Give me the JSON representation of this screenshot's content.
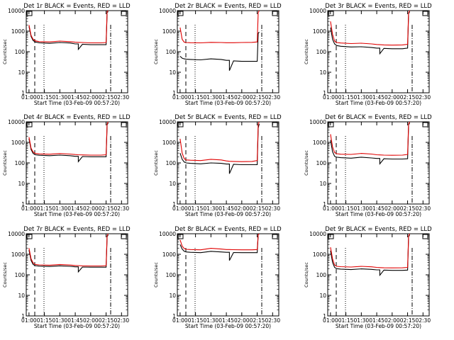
{
  "colors": {
    "events": "#000000",
    "lld": "#e00000",
    "axis": "#000000",
    "background": "#ffffff"
  },
  "chart_data": [
    {
      "type": "line",
      "title": "Det 1r BLACK = Events, RED = LLD",
      "xlabel": "Start Time (03-Feb-09 00:57:20)",
      "ylabel": "Counts/sec",
      "yscale": "log",
      "ylim": [
        1,
        10000
      ],
      "xlim": [
        "00:57:20",
        "02:36:00"
      ],
      "x_ticks": [
        "01:00",
        "01:15",
        "01:30",
        "01:45",
        "02:00",
        "02:15",
        "02:30"
      ],
      "y_ticks": [
        "1",
        "10",
        "100",
        "1000",
        "10000"
      ],
      "x": [
        "01:00",
        "01:02",
        "01:04",
        "01:06",
        "01:10",
        "01:20",
        "01:30",
        "01:40",
        "01:45",
        "01:48",
        "01:48",
        "01:52",
        "02:00",
        "02:10",
        "02:15",
        "02:16",
        "02:17"
      ],
      "series": [
        {
          "name": "Events",
          "values": [
            1700,
            550,
            350,
            300,
            270,
            255,
            280,
            265,
            240,
            240,
            130,
            230,
            220,
            220,
            220,
            8000,
            9000
          ]
        },
        {
          "name": "LLD",
          "values": [
            2000,
            620,
            400,
            340,
            310,
            300,
            330,
            310,
            290,
            285,
            285,
            280,
            270,
            270,
            280,
            9000,
            10000
          ]
        }
      ],
      "grid": false
    },
    {
      "type": "line",
      "title": "Det 2r BLACK = Events, RED = LLD",
      "xlabel": "Start Time (03-Feb-09 00:57:20)",
      "ylabel": "Counts/sec",
      "yscale": "log",
      "ylim": [
        1,
        10000
      ],
      "xlim": [
        "00:57:20",
        "02:36:00"
      ],
      "x_ticks": [
        "01:00",
        "01:15",
        "01:30",
        "01:45",
        "02:00",
        "02:15",
        "02:30"
      ],
      "y_ticks": [
        "1",
        "10",
        "100",
        "1000",
        "10000"
      ],
      "x": [
        "01:00",
        "01:02",
        "01:04",
        "01:06",
        "01:10",
        "01:20",
        "01:30",
        "01:40",
        "01:45",
        "01:48",
        "01:48",
        "01:52",
        "02:00",
        "02:10",
        "02:15",
        "02:16",
        "02:17"
      ],
      "series": [
        {
          "name": "Events",
          "values": [
            60,
            48,
            45,
            43,
            42,
            40,
            45,
            42,
            38,
            38,
            12,
            36,
            34,
            34,
            34,
            800,
            900
          ]
        },
        {
          "name": "LLD",
          "values": [
            1500,
            400,
            290,
            280,
            275,
            270,
            285,
            280,
            275,
            275,
            275,
            275,
            280,
            285,
            300,
            8000,
            10000
          ]
        }
      ],
      "grid": false
    },
    {
      "type": "line",
      "title": "Det 3r BLACK = Events, RED = LLD",
      "xlabel": "Start Time (03-Feb-09 00:57:20)",
      "ylabel": "Counts/sec",
      "yscale": "log",
      "ylim": [
        1,
        10000
      ],
      "xlim": [
        "00:57:20",
        "02:36:00"
      ],
      "x_ticks": [
        "01:00",
        "01:15",
        "01:30",
        "01:45",
        "02:00",
        "02:15",
        "02:30"
      ],
      "y_ticks": [
        "1",
        "10",
        "100",
        "1000",
        "10000"
      ],
      "x": [
        "01:00",
        "01:02",
        "01:04",
        "01:06",
        "01:10",
        "01:20",
        "01:30",
        "01:40",
        "01:45",
        "01:48",
        "01:48",
        "01:52",
        "02:00",
        "02:10",
        "02:15",
        "02:16",
        "02:17"
      ],
      "series": [
        {
          "name": "Events",
          "values": [
            1500,
            400,
            240,
            200,
            185,
            170,
            175,
            160,
            150,
            150,
            80,
            145,
            140,
            140,
            150,
            7000,
            9000
          ]
        },
        {
          "name": "LLD",
          "values": [
            3000,
            700,
            330,
            280,
            265,
            250,
            260,
            240,
            225,
            220,
            220,
            215,
            210,
            215,
            230,
            8000,
            10000
          ]
        }
      ],
      "grid": false
    },
    {
      "type": "line",
      "title": "Det 4r BLACK = Events, RED = LLD",
      "xlabel": "Start Time (03-Feb-09 00:57:20)",
      "ylabel": "Counts/sec",
      "yscale": "log",
      "ylim": [
        1,
        10000
      ],
      "xlim": [
        "00:57:20",
        "02:36:00"
      ],
      "x_ticks": [
        "01:00",
        "01:15",
        "01:30",
        "01:45",
        "02:00",
        "02:15",
        "02:30"
      ],
      "y_ticks": [
        "1",
        "10",
        "100",
        "1000",
        "10000"
      ],
      "x": [
        "01:00",
        "01:02",
        "01:04",
        "01:06",
        "01:10",
        "01:20",
        "01:30",
        "01:40",
        "01:45",
        "01:48",
        "01:48",
        "01:52",
        "02:00",
        "02:10",
        "02:15",
        "02:16",
        "02:17"
      ],
      "series": [
        {
          "name": "Events",
          "values": [
            1500,
            450,
            290,
            250,
            235,
            225,
            240,
            225,
            210,
            210,
            115,
            205,
            200,
            200,
            200,
            7000,
            9000
          ]
        },
        {
          "name": "LLD",
          "values": [
            1800,
            520,
            340,
            290,
            275,
            265,
            285,
            270,
            255,
            250,
            250,
            245,
            240,
            240,
            250,
            8000,
            10000
          ]
        }
      ],
      "grid": false
    },
    {
      "type": "line",
      "title": "Det 5r BLACK = Events, RED = LLD",
      "xlabel": "Start Time (03-Feb-09 00:57:20)",
      "ylabel": "Counts/sec",
      "yscale": "log",
      "ylim": [
        1,
        10000
      ],
      "xlim": [
        "00:57:20",
        "02:36:00"
      ],
      "x_ticks": [
        "01:00",
        "01:15",
        "01:30",
        "01:45",
        "02:00",
        "02:15",
        "02:30"
      ],
      "y_ticks": [
        "1",
        "10",
        "100",
        "1000",
        "10000"
      ],
      "x": [
        "01:00",
        "01:02",
        "01:04",
        "01:06",
        "01:10",
        "01:20",
        "01:30",
        "01:40",
        "01:45",
        "01:48",
        "01:48",
        "01:52",
        "02:00",
        "02:10",
        "02:15",
        "02:16",
        "02:17"
      ],
      "series": [
        {
          "name": "Events",
          "values": [
            300,
            150,
            110,
            100,
            95,
            90,
            100,
            95,
            88,
            88,
            30,
            85,
            82,
            82,
            82,
            5000,
            8000
          ]
        },
        {
          "name": "LLD",
          "values": [
            1500,
            300,
            160,
            140,
            135,
            130,
            150,
            140,
            125,
            120,
            120,
            118,
            115,
            118,
            130,
            8000,
            10000
          ]
        }
      ],
      "grid": false
    },
    {
      "type": "line",
      "title": "Det 6r BLACK = Events, RED = LLD",
      "xlabel": "Start Time (03-Feb-09 00:57:20)",
      "ylabel": "Counts/sec",
      "yscale": "log",
      "ylim": [
        1,
        10000
      ],
      "xlim": [
        "00:57:20",
        "02:36:00"
      ],
      "x_ticks": [
        "01:00",
        "01:15",
        "01:30",
        "01:45",
        "02:00",
        "02:15",
        "02:30"
      ],
      "y_ticks": [
        "1",
        "10",
        "100",
        "1000",
        "10000"
      ],
      "x": [
        "01:00",
        "01:02",
        "01:04",
        "01:06",
        "01:10",
        "01:20",
        "01:30",
        "01:40",
        "01:45",
        "01:48",
        "01:48",
        "01:52",
        "02:00",
        "02:10",
        "02:15",
        "02:16",
        "02:17"
      ],
      "series": [
        {
          "name": "Events",
          "values": [
            1300,
            350,
            210,
            190,
            180,
            170,
            190,
            175,
            165,
            165,
            90,
            160,
            155,
            155,
            160,
            7000,
            9000
          ]
        },
        {
          "name": "LLD",
          "values": [
            2500,
            600,
            320,
            280,
            265,
            260,
            290,
            270,
            250,
            245,
            245,
            240,
            235,
            240,
            260,
            8000,
            10000
          ]
        }
      ],
      "grid": false
    },
    {
      "type": "line",
      "title": "Det 7r BLACK = Events, RED = LLD",
      "xlabel": "Start Time (03-Feb-09 00:57:20)",
      "ylabel": "Counts/sec",
      "yscale": "log",
      "ylim": [
        1,
        10000
      ],
      "xlim": [
        "00:57:20",
        "02:36:00"
      ],
      "x_ticks": [
        "01:00",
        "01:15",
        "01:30",
        "01:45",
        "02:00",
        "02:15",
        "02:30"
      ],
      "y_ticks": [
        "1",
        "10",
        "100",
        "1000",
        "10000"
      ],
      "x": [
        "01:00",
        "01:02",
        "01:04",
        "01:06",
        "01:10",
        "01:20",
        "01:30",
        "01:40",
        "01:45",
        "01:48",
        "01:48",
        "01:52",
        "02:00",
        "02:10",
        "02:15",
        "02:16",
        "02:17"
      ],
      "series": [
        {
          "name": "Events",
          "values": [
            1600,
            500,
            320,
            280,
            265,
            255,
            275,
            260,
            245,
            245,
            140,
            240,
            235,
            235,
            235,
            7000,
            9000
          ]
        },
        {
          "name": "LLD",
          "values": [
            2000,
            600,
            380,
            320,
            305,
            295,
            320,
            300,
            285,
            280,
            280,
            275,
            270,
            270,
            280,
            8000,
            10000
          ]
        }
      ],
      "grid": false
    },
    {
      "type": "line",
      "title": "Det 8r BLACK = Events, RED = LLD",
      "xlabel": "Start Time (03-Feb-09 00:57:20)",
      "ylabel": "Counts/sec",
      "yscale": "log",
      "ylim": [
        1,
        10000
      ],
      "xlim": [
        "00:57:20",
        "02:36:00"
      ],
      "x_ticks": [
        "01:00",
        "01:15",
        "01:30",
        "01:45",
        "02:00",
        "02:15",
        "02:30"
      ],
      "y_ticks": [
        "1",
        "10",
        "100",
        "1000",
        "10000"
      ],
      "x": [
        "01:00",
        "01:02",
        "01:04",
        "01:06",
        "01:10",
        "01:20",
        "01:30",
        "01:40",
        "01:45",
        "01:48",
        "01:48",
        "01:52",
        "02:00",
        "02:10",
        "02:15",
        "02:16",
        "02:17"
      ],
      "series": [
        {
          "name": "Events",
          "values": [
            3000,
            1800,
            1400,
            1300,
            1250,
            1200,
            1400,
            1300,
            1250,
            1250,
            500,
            1220,
            1200,
            1200,
            1200,
            9000,
            10000
          ]
        },
        {
          "name": "LLD",
          "values": [
            5000,
            2500,
            1900,
            1750,
            1700,
            1650,
            1950,
            1800,
            1700,
            1700,
            1700,
            1680,
            1650,
            1650,
            1700,
            9000,
            10000
          ]
        }
      ],
      "grid": false
    },
    {
      "type": "line",
      "title": "Det 9r BLACK = Events, RED = LLD",
      "xlabel": "Start Time (03-Feb-09 00:57:20)",
      "ylabel": "Counts/sec",
      "yscale": "log",
      "ylim": [
        1,
        10000
      ],
      "xlim": [
        "00:57:20",
        "02:36:00"
      ],
      "x_ticks": [
        "01:00",
        "01:15",
        "01:30",
        "01:45",
        "02:00",
        "02:15",
        "02:30"
      ],
      "y_ticks": [
        "1",
        "10",
        "100",
        "1000",
        "10000"
      ],
      "x": [
        "01:00",
        "01:02",
        "01:04",
        "01:06",
        "01:10",
        "01:20",
        "01:30",
        "01:40",
        "01:45",
        "01:48",
        "01:48",
        "01:52",
        "02:00",
        "02:10",
        "02:15",
        "02:16",
        "02:17"
      ],
      "series": [
        {
          "name": "Events",
          "values": [
            1500,
            400,
            230,
            200,
            190,
            180,
            195,
            185,
            175,
            175,
            95,
            170,
            165,
            165,
            170,
            7000,
            9000
          ]
        },
        {
          "name": "LLD",
          "values": [
            2200,
            600,
            300,
            260,
            250,
            240,
            260,
            245,
            230,
            225,
            225,
            220,
            218,
            220,
            230,
            8000,
            10000
          ]
        }
      ],
      "grid": false
    }
  ]
}
